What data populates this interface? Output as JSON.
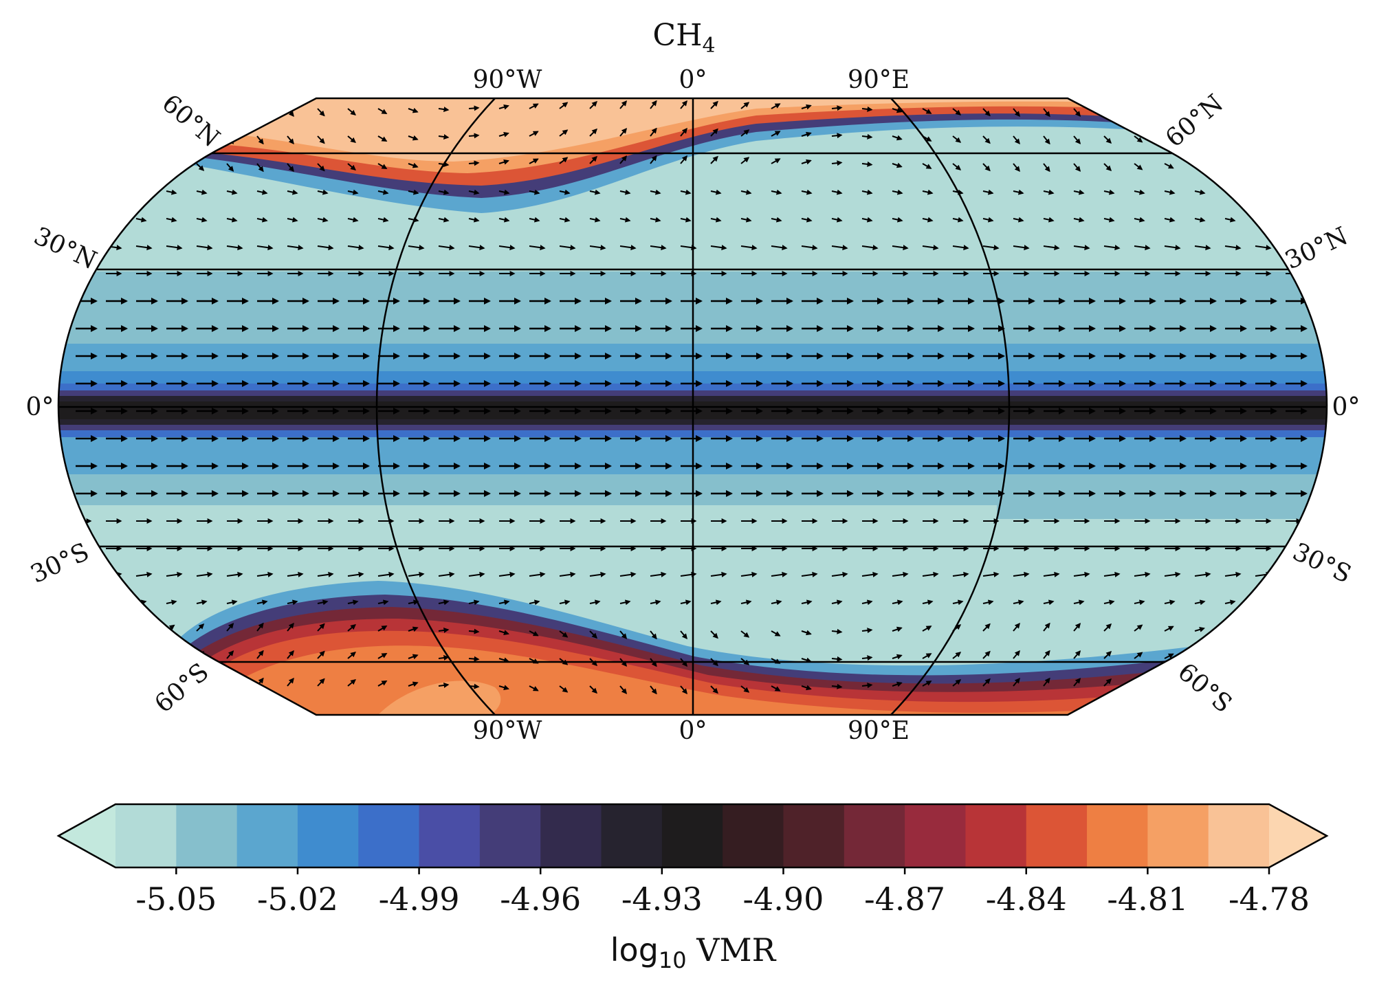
{
  "title_main": "CH",
  "title_sub": "4",
  "meridian_labels": [
    "90°W",
    "0°",
    "90°E"
  ],
  "parallel_labels": {
    "north": [
      "60°N",
      "30°N"
    ],
    "equator": "0°",
    "south": [
      "30°S",
      "60°S"
    ]
  },
  "colorbar": {
    "label_prefix": "log",
    "label_sub": "10",
    "label_suffix": " VMR",
    "ticks": [
      "-5.05",
      "-5.02",
      "-4.99",
      "-4.96",
      "-4.93",
      "-4.90",
      "-4.87",
      "-4.84",
      "-4.81",
      "-4.78"
    ],
    "tick_values": [
      -5.05,
      -5.02,
      -4.99,
      -4.96,
      -4.93,
      -4.9,
      -4.87,
      -4.84,
      -4.81,
      -4.78
    ],
    "levels": [
      -5.065,
      -5.05,
      -5.035,
      -5.02,
      -5.005,
      -4.99,
      -4.975,
      -4.96,
      -4.945,
      -4.93,
      -4.915,
      -4.9,
      -4.885,
      -4.87,
      -4.855,
      -4.84,
      -4.825,
      -4.81,
      -4.795,
      -4.78
    ],
    "colors": [
      "#b2dbd7",
      "#86bfcc",
      "#5ba6cf",
      "#3f8ccf",
      "#3c6fc9",
      "#4a4ea6",
      "#443d78",
      "#332b4d",
      "#26232f",
      "#1e1c1d",
      "#351d21",
      "#4f2229",
      "#742837",
      "#982b3d",
      "#b83437",
      "#dc5536",
      "#ee7f43",
      "#f5a064",
      "#f9c296"
    ],
    "extend_low_color": "#c3e8dd",
    "extend_high_color": "#fcd6b0"
  }
}
